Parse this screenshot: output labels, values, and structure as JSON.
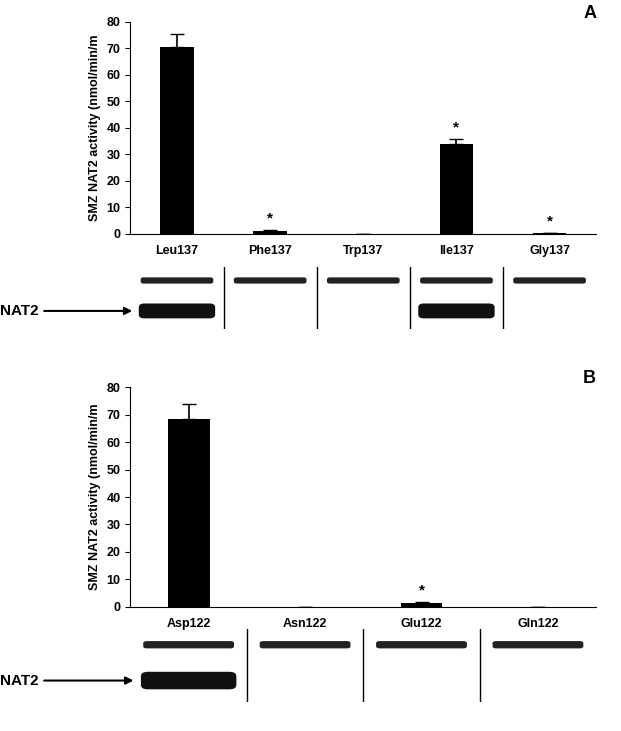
{
  "chart_data": [
    {
      "type": "bar",
      "title": "A",
      "y_label": "SMZ NAT2 activity (nmol/min/m",
      "categories": [
        "Leu137",
        "Phe137",
        "Trp137",
        "Ile137",
        "Gly137"
      ],
      "values": [
        70.5,
        1.2,
        0,
        34,
        0.3
      ],
      "errors": [
        5,
        0.3,
        0,
        1.8,
        0.1
      ],
      "annotations": [
        {
          "category": "Phe137",
          "text": "*"
        },
        {
          "category": "Ile137",
          "text": "*"
        },
        {
          "category": "Gly137",
          "text": "*"
        }
      ],
      "color": "#000000",
      "ylim": [
        0,
        80
      ],
      "yticks": [
        0,
        10,
        20,
        30,
        40,
        50,
        60,
        70,
        80
      ],
      "grid": false,
      "blot_label": "NAT2",
      "nat2_band": [
        true,
        false,
        false,
        true,
        false
      ]
    },
    {
      "type": "bar",
      "title": "B",
      "y_label": "SMZ NAT2 activity (nmol/min/m",
      "categories": [
        "Asp122",
        "Asn122",
        "Glu122",
        "Gln122"
      ],
      "values": [
        68.5,
        0,
        1.5,
        0
      ],
      "errors": [
        5.5,
        0,
        0.4,
        0
      ],
      "annotations": [
        {
          "category": "Glu122",
          "text": "*"
        }
      ],
      "color": "#000000",
      "ylim": [
        0,
        80
      ],
      "yticks": [
        0,
        10,
        20,
        30,
        40,
        50,
        60,
        70,
        80
      ],
      "grid": false,
      "blot_label": "NAT2",
      "nat2_band": [
        true,
        false,
        false,
        false
      ]
    }
  ]
}
